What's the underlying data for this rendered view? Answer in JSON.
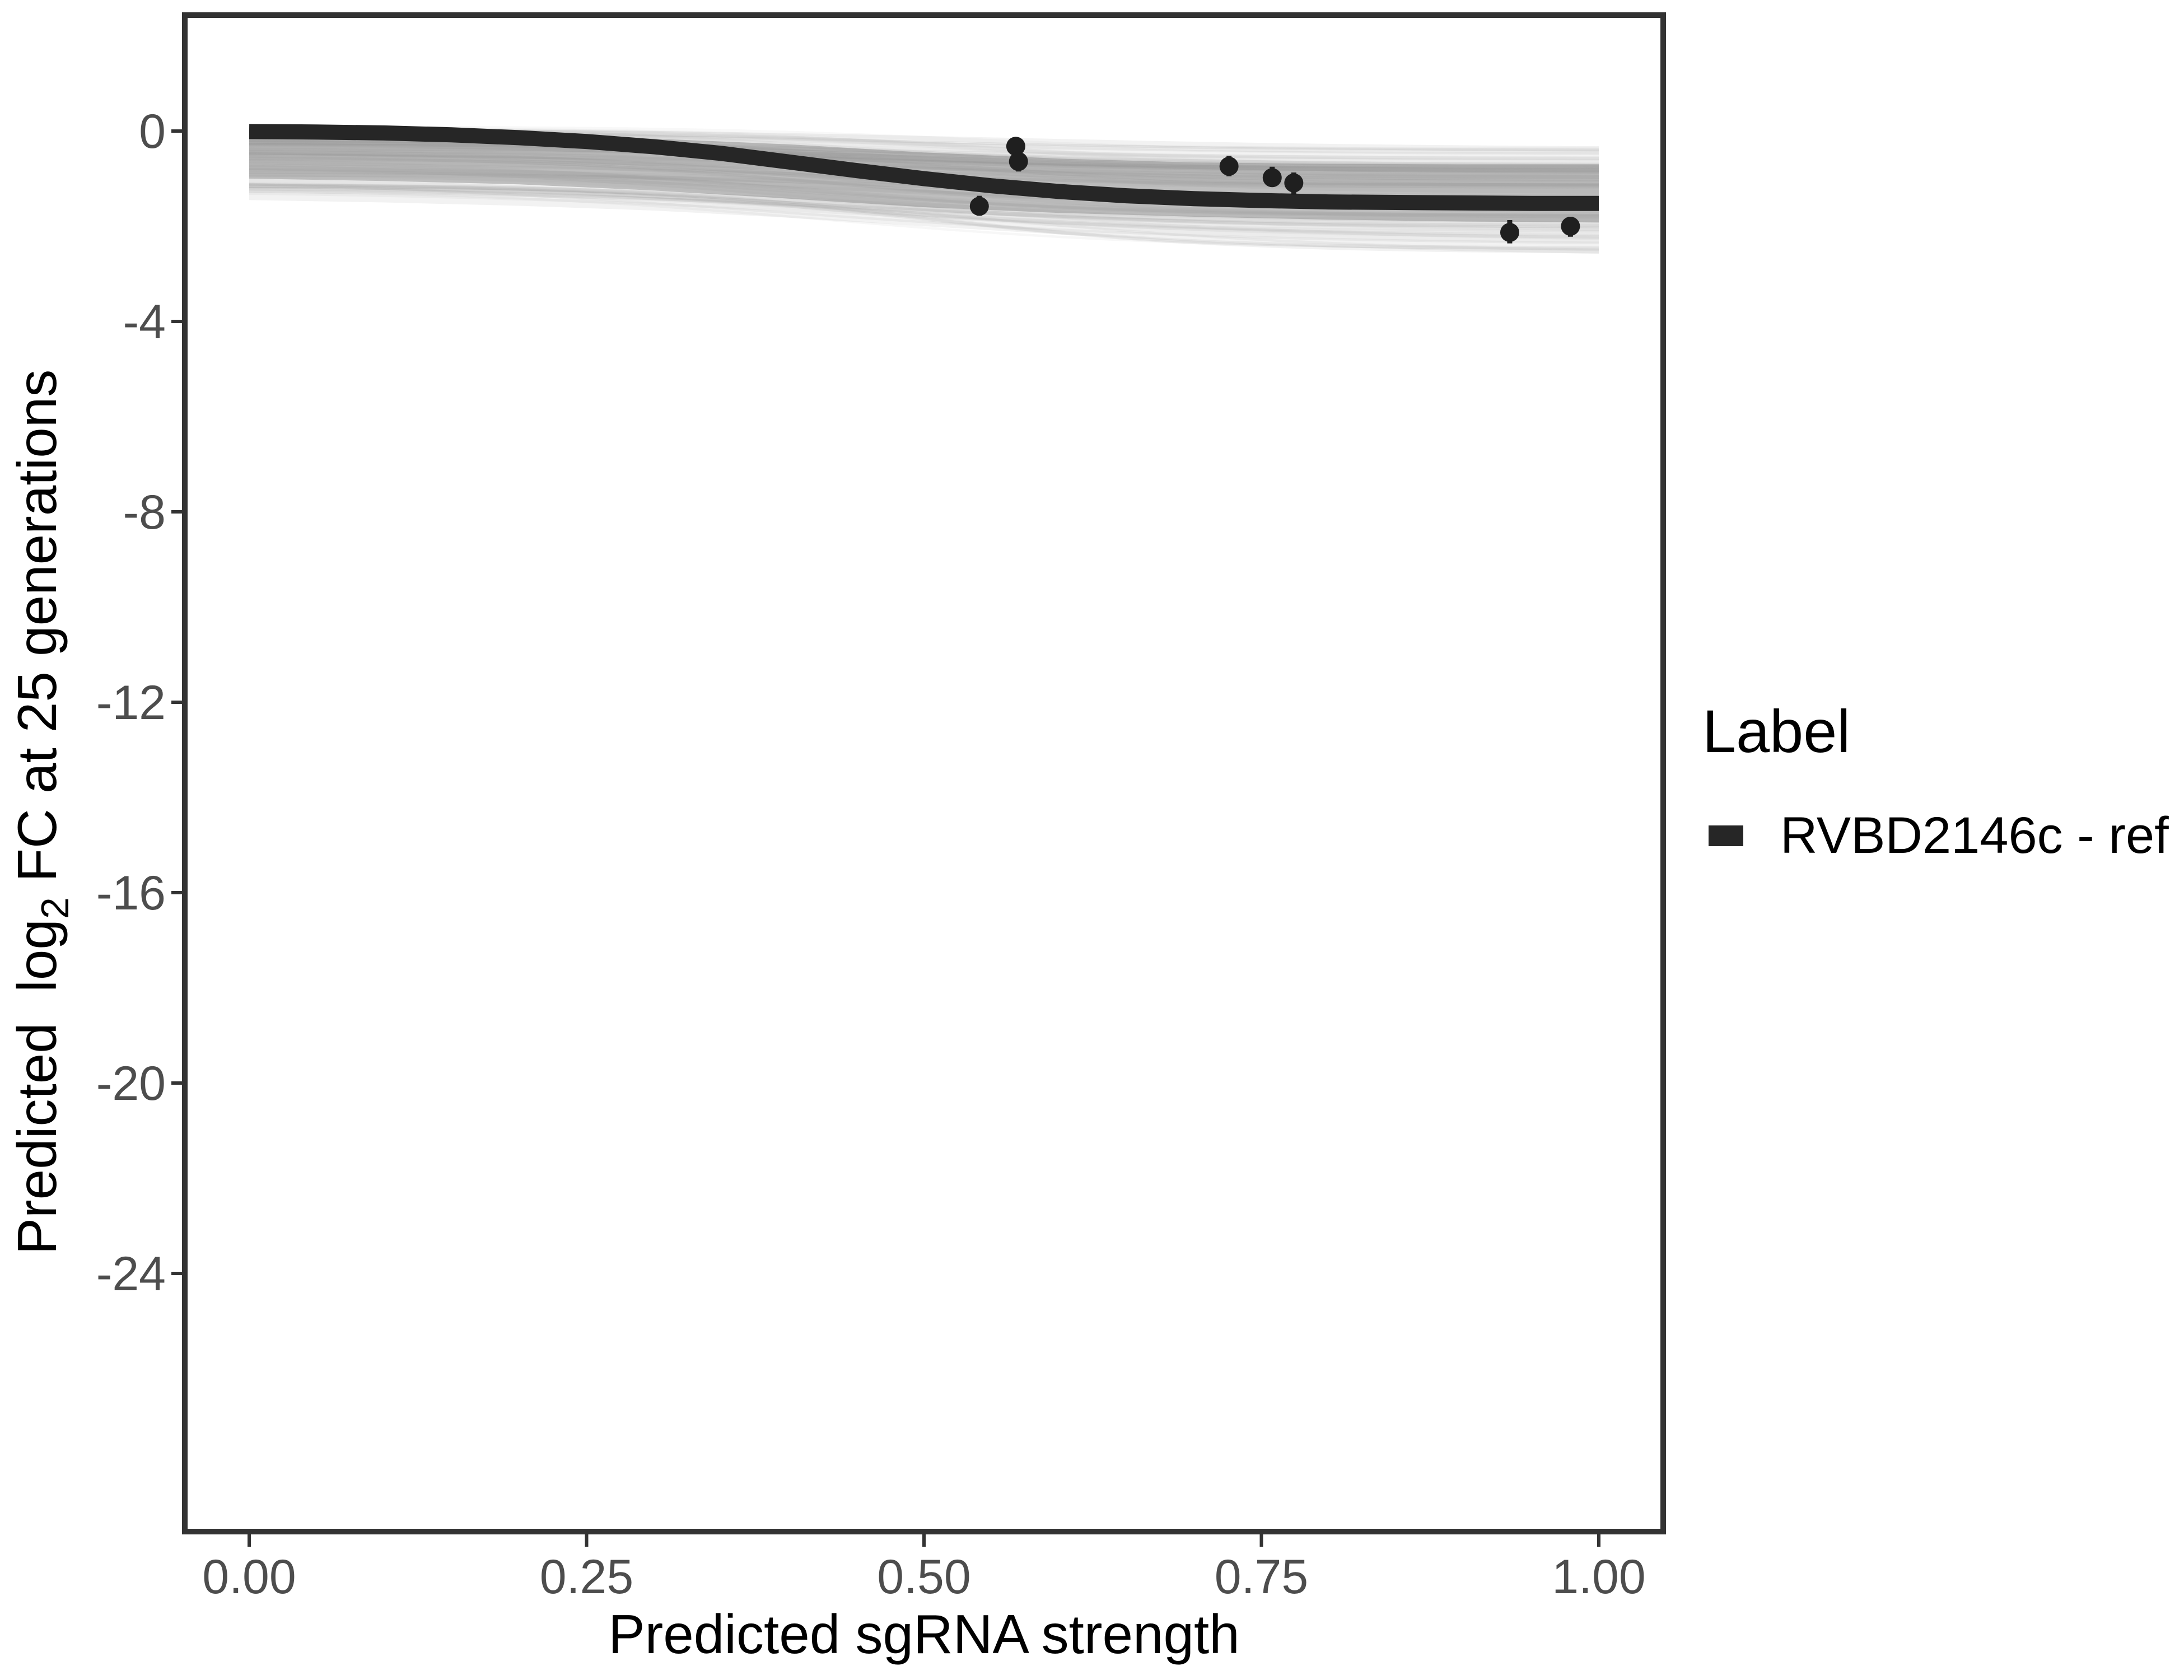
{
  "chart_data": {
    "type": "line",
    "title": "",
    "xlabel": "Predicted sgRNA strength",
    "ylabel": {
      "prefix": "Predicted  log",
      "sub": "2",
      "suffix": " FC at 25 generations"
    },
    "x_axis": {
      "domain": [
        0,
        1
      ],
      "ticks": [
        0,
        0.25,
        0.5,
        0.75,
        1.0
      ],
      "labels": [
        "0.00",
        "0.25",
        "0.50",
        "0.75",
        "1.00"
      ]
    },
    "y_axis": {
      "range": [
        -29.4,
        2.4
      ],
      "ticks": [
        0,
        -4,
        -8,
        -12,
        -16,
        -20,
        -24
      ],
      "labels": [
        "0",
        "-4",
        "-8",
        "-12",
        "-16",
        "-20",
        "-24"
      ]
    },
    "grid": "off",
    "legend": {
      "position": "right",
      "title": "Label",
      "items": [
        {
          "label": "RVBD2146c - ref",
          "color": "#262626"
        }
      ]
    },
    "series": [
      {
        "name": "RVBD2146c - ref",
        "style": "thick-sigmoid-curve",
        "x": [
          0.0,
          0.05,
          0.1,
          0.15,
          0.2,
          0.25,
          0.3,
          0.35,
          0.4,
          0.45,
          0.5,
          0.55,
          0.6,
          0.65,
          0.7,
          0.75,
          0.8,
          0.85,
          0.9,
          0.95,
          1.0
        ],
        "y": [
          -0.01,
          -0.02,
          -0.04,
          -0.08,
          -0.14,
          -0.22,
          -0.33,
          -0.47,
          -0.65,
          -0.83,
          -1.0,
          -1.15,
          -1.27,
          -1.36,
          -1.42,
          -1.46,
          -1.49,
          -1.5,
          -1.51,
          -1.52,
          -1.52
        ]
      }
    ],
    "points": [
      {
        "x": 0.541,
        "y": -1.58,
        "ymin": -1.78,
        "ymax": -1.36
      },
      {
        "x": 0.568,
        "y": -0.32,
        "ymin": -0.5,
        "ymax": -0.13
      },
      {
        "x": 0.57,
        "y": -0.64,
        "ymin": -0.85,
        "ymax": -0.46
      },
      {
        "x": 0.726,
        "y": -0.74,
        "ymin": -0.95,
        "ymax": -0.52
      },
      {
        "x": 0.758,
        "y": -0.98,
        "ymin": -1.16,
        "ymax": -0.75
      },
      {
        "x": 0.774,
        "y": -1.09,
        "ymin": -1.34,
        "ymax": -0.87
      },
      {
        "x": 0.934,
        "y": -2.13,
        "ymin": -2.36,
        "ymax": -1.87
      },
      {
        "x": 0.979,
        "y": -2.0,
        "ymin": -2.22,
        "ymax": -1.8
      }
    ],
    "uncertainty_band": {
      "style": "posterior-draw-spaghetti",
      "x": [
        0.0,
        0.1,
        0.2,
        0.3,
        0.4,
        0.5,
        0.6,
        0.7,
        0.8,
        0.9,
        1.0
      ],
      "outer_upper": [
        0.08,
        0.06,
        0.03,
        -0.02,
        -0.1,
        -0.22,
        -0.33,
        -0.4,
        -0.43,
        -0.44,
        -0.45
      ],
      "outer_lower": [
        -1.45,
        -1.5,
        -1.57,
        -1.67,
        -1.82,
        -2.0,
        -2.17,
        -2.32,
        -2.44,
        -2.52,
        -2.58
      ],
      "inner_upper": [
        -0.03,
        -0.05,
        -0.09,
        -0.16,
        -0.28,
        -0.45,
        -0.58,
        -0.66,
        -0.69,
        -0.7,
        -0.7
      ],
      "inner_lower": [
        -1.0,
        -1.05,
        -1.12,
        -1.25,
        -1.42,
        -1.6,
        -1.72,
        -1.8,
        -1.86,
        -1.9,
        -1.92
      ]
    },
    "colors": {
      "curve": "#262626",
      "points": "#1f1f1f",
      "band_inner": "#b5b5b5",
      "band_outer": "#e6e6e6",
      "spaghetti": "#8c8c8c",
      "panel_border": "#333333",
      "tick_label": "#4d4d4d",
      "axis_title": "#000000"
    }
  }
}
